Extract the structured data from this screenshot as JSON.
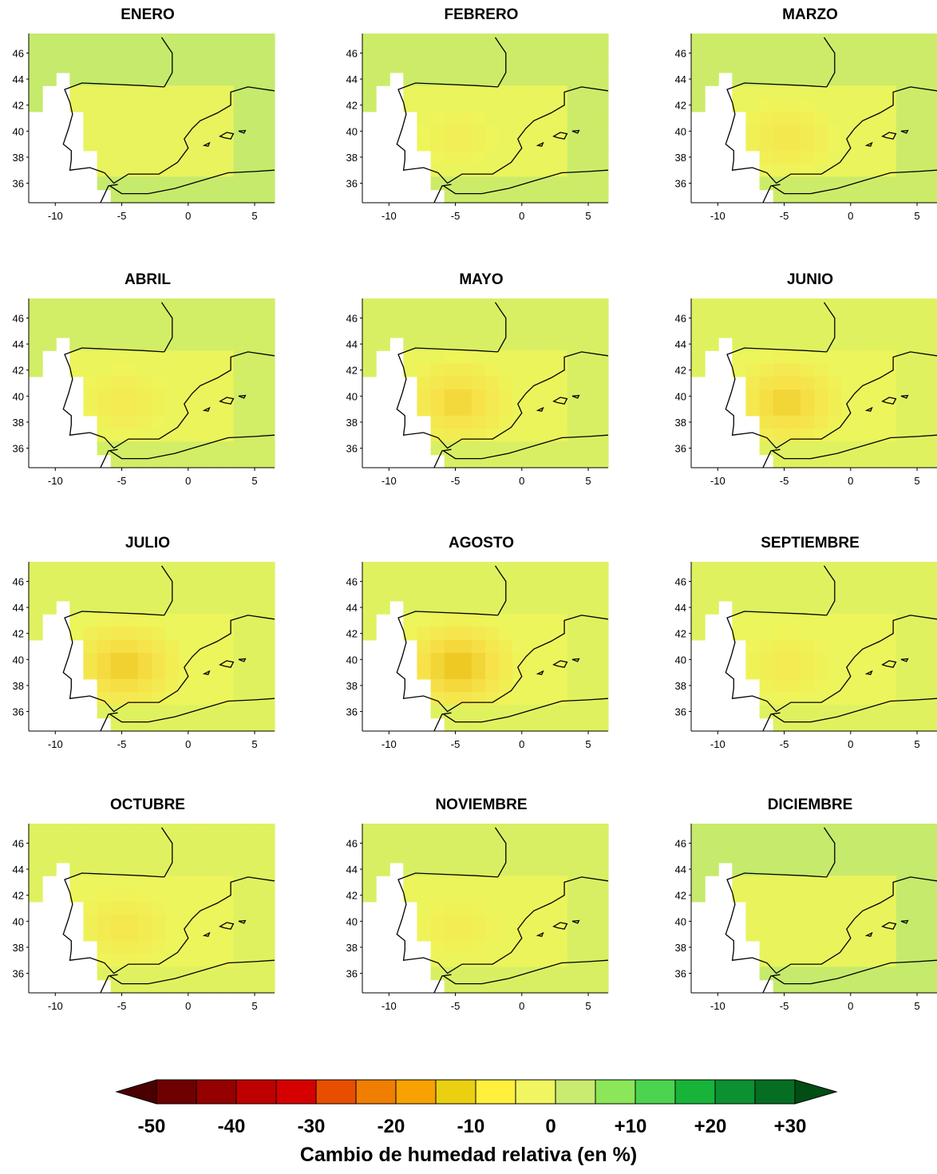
{
  "months": [
    {
      "title": "ENERO",
      "dry": 0.2,
      "moist": 0.35
    },
    {
      "title": "FEBRERO",
      "dry": 0.35,
      "moist": 0.25
    },
    {
      "title": "MARZO",
      "dry": 0.5,
      "moist": 0.25
    },
    {
      "title": "ABRIL",
      "dry": 0.45,
      "moist": 0.2
    },
    {
      "title": "MAYO",
      "dry": 0.75,
      "moist": 0.15
    },
    {
      "title": "JUNIO",
      "dry": 0.8,
      "moist": 0.1
    },
    {
      "title": "JULIO",
      "dry": 0.85,
      "moist": 0.1
    },
    {
      "title": "AGOSTO",
      "dry": 0.95,
      "moist": 0.1
    },
    {
      "title": "SEPTIEMBRE",
      "dry": 0.45,
      "moist": 0.1
    },
    {
      "title": "OCTUBRE",
      "dry": 0.5,
      "moist": 0.1
    },
    {
      "title": "NOVIEMBRE",
      "dry": 0.4,
      "moist": 0.15
    },
    {
      "title": "DICIEMBRE",
      "dry": 0.2,
      "moist": 0.3
    }
  ],
  "axes": {
    "x_ticks": [
      "-10",
      "-5",
      "0",
      "5"
    ],
    "y_ticks": [
      "46",
      "44",
      "42",
      "40",
      "38",
      "36"
    ],
    "x_range": [
      -12,
      6.5
    ],
    "y_range": [
      34.5,
      47.5
    ]
  },
  "legend": {
    "title": "Cambio  de humedad relativa (en %)",
    "labels": [
      "-50",
      "-40",
      "-30",
      "-20",
      "-10",
      "0",
      "+10",
      "+20",
      "+30"
    ],
    "colors": [
      "#4a0000",
      "#6e0000",
      "#950000",
      "#bf0000",
      "#d60000",
      "#e84e00",
      "#f07e00",
      "#f7a200",
      "#ead010",
      "#fff03e",
      "#f0f560",
      "#c8eb70",
      "#8ce65a",
      "#4cd450",
      "#18b43a",
      "#0c9030",
      "#066e22",
      "#004e14"
    ]
  }
}
